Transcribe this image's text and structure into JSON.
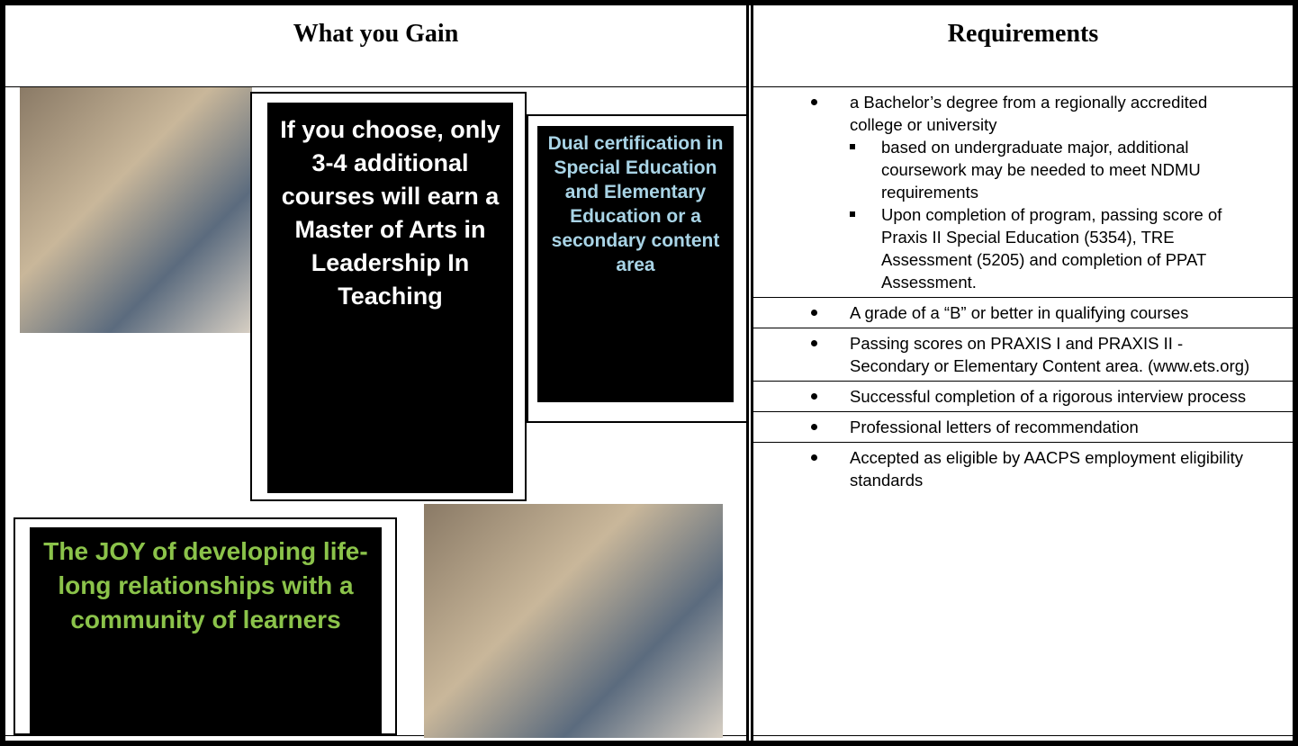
{
  "header": {
    "left_title": "What you Gain",
    "right_title": "Requirements"
  },
  "gain": {
    "leadership": "If you choose, only 3-4 additional courses will earn a Master of Arts in Leadership In Teaching",
    "dual": "Dual certification in Special Education and Elementary Education or a secondary content area",
    "joy": "The JOY of developing life-long relationships with a community of learners"
  },
  "requirements": {
    "items": [
      {
        "text": "a Bachelor’s degree from a regionally accredited college or university",
        "subitems": [
          "based on undergraduate major, additional coursework may be needed to meet NDMU requirements",
          "Upon completion of program, passing score of Praxis II Special Education (5354), TRE Assessment (5205) and completion of PPAT Assessment."
        ]
      },
      {
        "text": "A grade of a “B” or better in qualifying courses",
        "subitems": []
      },
      {
        "text": "Passing scores on PRAXIS I and PRAXIS II - Secondary or Elementary Content area. (www.ets.org)",
        "subitems": []
      },
      {
        "text": "Successful completion of a rigorous interview process",
        "subitems": []
      },
      {
        "text": "Professional letters of recommendation",
        "subitems": []
      },
      {
        "text": "Accepted as eligible by AACPS employment eligibility standards",
        "subitems": []
      }
    ]
  }
}
